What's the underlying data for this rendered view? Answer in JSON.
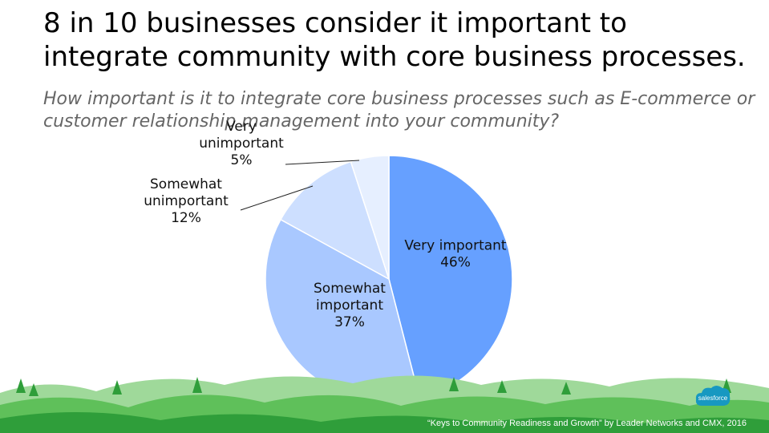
{
  "slide": {
    "title": "8 in 10 businesses consider it important to integrate community with core business processes.",
    "question": "How important is it to integrate core business processes such as E-commerce or customer relationship management into your community?",
    "citation": "“Keys to Community Readiness and Growth” by Leader Networks and CMX, 2016",
    "logo_text": "salesforce"
  },
  "chart_data": {
    "type": "pie",
    "title": "",
    "slices": [
      {
        "label_lines": [
          "Very important"
        ],
        "value": 46,
        "value_label": "46%",
        "color": "#66a0ff"
      },
      {
        "label_lines": [
          "Somewhat",
          "important"
        ],
        "value": 37,
        "value_label": "37%",
        "color": "#a9c8ff"
      },
      {
        "label_lines": [
          "Somewhat",
          "unimportant"
        ],
        "value": 12,
        "value_label": "12%",
        "color": "#cddfff"
      },
      {
        "label_lines": [
          "Very",
          "unimportant"
        ],
        "value": 5,
        "value_label": "5%",
        "color": "#e6efff"
      }
    ],
    "start_angle": "12 o'clock",
    "direction": "clockwise",
    "legend": "none"
  }
}
